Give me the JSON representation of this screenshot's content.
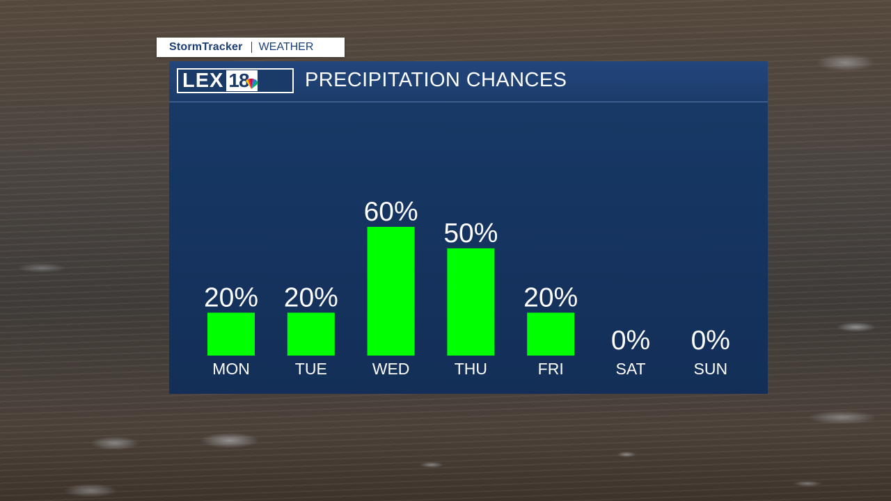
{
  "tag": {
    "brand": "StormTracker",
    "section": "WEATHER"
  },
  "panel": {
    "title": "PRECIPITATION CHANCES",
    "logo_text": "LEX",
    "logo_number": "18"
  },
  "colors": {
    "bar": "#00ff00",
    "panel": "#163561",
    "text": "#ffffff",
    "brand": "#1b3d73"
  },
  "chart_data": {
    "type": "bar",
    "title": "PRECIPITATION CHANCES",
    "categories": [
      "MON",
      "TUE",
      "WED",
      "THU",
      "FRI",
      "SAT",
      "SUN"
    ],
    "values": [
      20,
      20,
      60,
      50,
      20,
      0,
      0
    ],
    "value_labels": [
      "20%",
      "20%",
      "60%",
      "50%",
      "20%",
      "0%",
      "0%"
    ],
    "unit": "%",
    "ylim": [
      0,
      100
    ],
    "grid": false,
    "legend": "none"
  }
}
